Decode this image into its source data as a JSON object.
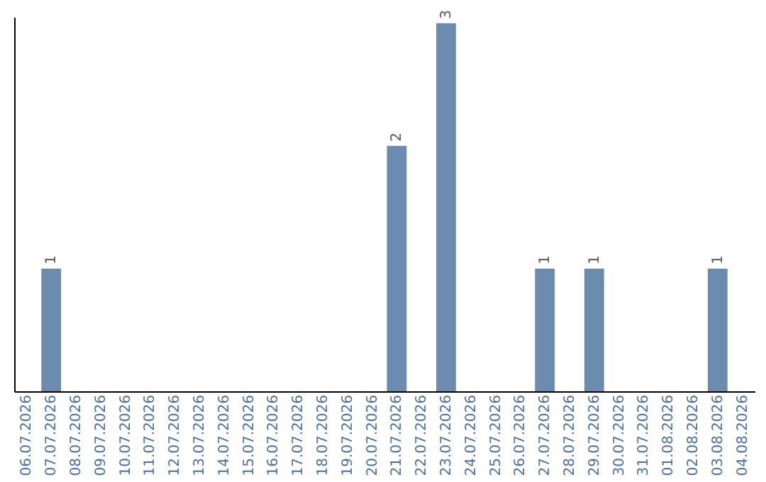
{
  "chart_data": {
    "type": "bar",
    "categories": [
      "06.07.2026",
      "07.07.2026",
      "08.07.2026",
      "09.07.2026",
      "10.07.2026",
      "11.07.2026",
      "12.07.2026",
      "13.07.2026",
      "14.07.2026",
      "15.07.2026",
      "16.07.2026",
      "17.07.2026",
      "18.07.2026",
      "19.07.2026",
      "20.07.2026",
      "21.07.2026",
      "22.07.2026",
      "23.07.2026",
      "24.07.2026",
      "25.07.2026",
      "26.07.2026",
      "27.07.2026",
      "28.07.2026",
      "29.07.2026",
      "30.07.2026",
      "31.07.2026",
      "01.08.2026",
      "02.08.2026",
      "03.08.2026",
      "04.08.2026"
    ],
    "values": [
      0,
      1,
      0,
      0,
      0,
      0,
      0,
      0,
      0,
      0,
      0,
      0,
      0,
      0,
      0,
      2,
      0,
      3,
      0,
      0,
      0,
      1,
      0,
      1,
      0,
      0,
      0,
      0,
      1,
      0
    ],
    "value_labels": [
      null,
      "1",
      null,
      null,
      null,
      null,
      null,
      null,
      null,
      null,
      null,
      null,
      null,
      null,
      null,
      "2",
      null,
      "3",
      null,
      null,
      null,
      "1",
      null,
      "1",
      null,
      null,
      null,
      null,
      "1",
      null
    ],
    "color": "#6b8cae",
    "ylim": [
      0,
      3.05
    ],
    "tick_labels": "x",
    "grid": false
  }
}
